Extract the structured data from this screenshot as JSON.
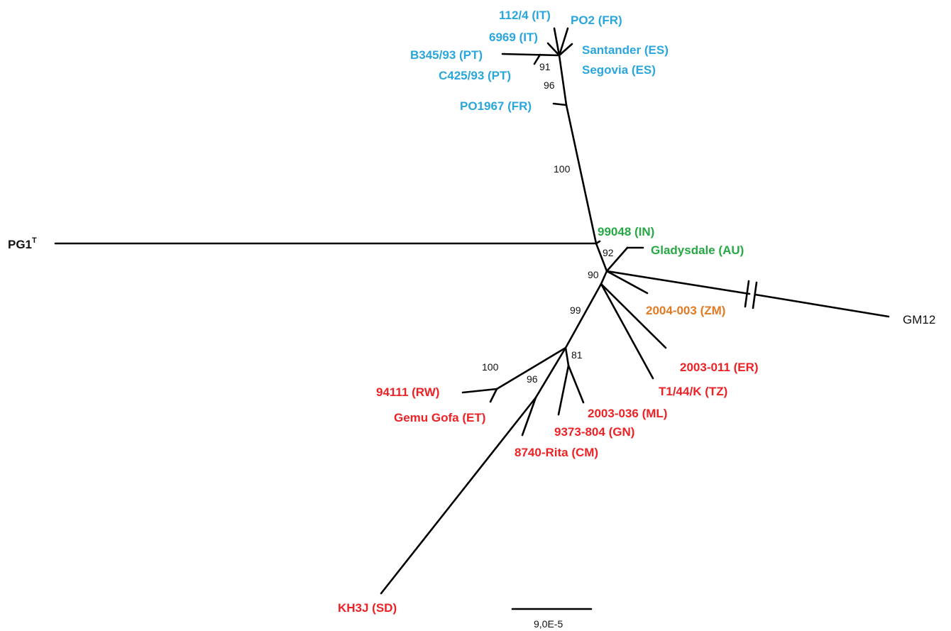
{
  "colors": {
    "europe": "#2aa6dc",
    "asia_oceania": "#27a844",
    "zambia": "#e07b24",
    "africa": "#ec2226",
    "outgroup": "#111111",
    "branch": "#000000"
  },
  "tips": {
    "it_112_4": "112/4 (IT)",
    "fr_po2": "PO2 (FR)",
    "it_6969": "6969 (IT)",
    "es_santander": "Santander (ES)",
    "pt_b345": "B345/93 (PT)",
    "es_segovia": "Segovia (ES)",
    "pt_c425": "C425/93 (PT)",
    "fr_po1967": "PO1967 (FR)",
    "pg1": "PG1",
    "pg1_sup": "T",
    "in_99048": "99048 (IN)",
    "au_gladysdale": "Gladysdale (AU)",
    "zm_2004_003": "2004-003 (ZM)",
    "gm12": "GM12",
    "er_2003_011": "2003-011 (ER)",
    "tz_t1_44_k": "T1/44/K (TZ)",
    "rw_94111": "94111 (RW)",
    "et_gemu_gofa": "Gemu Gofa (ET)",
    "ml_2003_036": "2003-036 (ML)",
    "gn_9373_804": "9373-804 (GN)",
    "cm_8740_rita": "8740-Rita (CM)",
    "sd_kh3j": "KH3J (SD)"
  },
  "bootstrap": {
    "b91": "91",
    "b96_top": "96",
    "b100_mid": "100",
    "b92": "92",
    "b90": "90",
    "b99": "99",
    "b81": "81",
    "b100_low": "100",
    "b96_low": "96"
  },
  "scale_bar": {
    "label": "9,0E-5"
  }
}
